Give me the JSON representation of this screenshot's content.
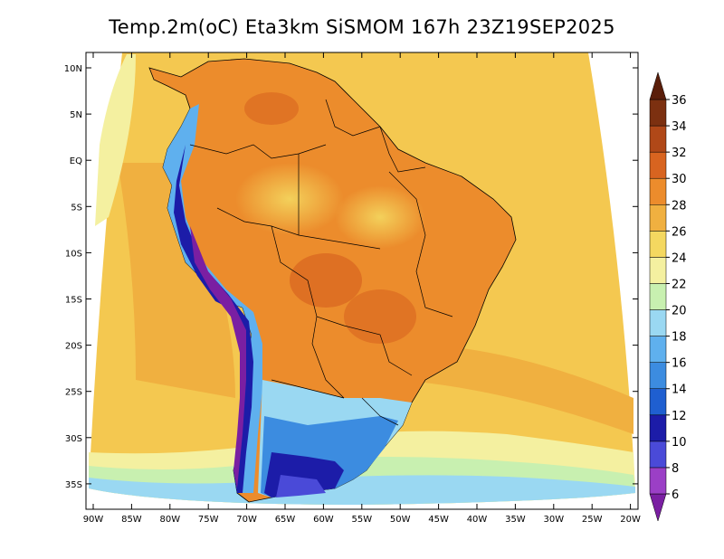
{
  "title": "Temp.2m(oC) Eta3km SiSMOM 167h 23Z19SEP2025",
  "lat_labels": [
    "10N",
    "5N",
    "EQ",
    "5S",
    "10S",
    "15S",
    "20S",
    "25S",
    "30S",
    "35S"
  ],
  "lon_labels": [
    "90W",
    "85W",
    "80W",
    "75W",
    "70W",
    "65W",
    "60W",
    "55W",
    "50W",
    "45W",
    "40W",
    "35W",
    "30W",
    "25W",
    "20W"
  ],
  "colorbar": {
    "levels": [
      "6",
      "8",
      "10",
      "12",
      "14",
      "16",
      "18",
      "20",
      "22",
      "24",
      "26",
      "28",
      "30",
      "32",
      "34",
      "36"
    ],
    "colors": [
      "#7a1fa2",
      "#9b3fc6",
      "#4a4ad8",
      "#1c1ca8",
      "#1f5fd0",
      "#3c8ce0",
      "#5fb0ee",
      "#9ad8f2",
      "#c8f0b0",
      "#f4f0a0",
      "#f4d860",
      "#f0b040",
      "#ec8c2c",
      "#d86420",
      "#b04818",
      "#7c3010",
      "#5a1e0a"
    ]
  },
  "map": {
    "ocean_color": "#f4c850",
    "continent_base": "#ec8c2c",
    "extent": "Lon 90W-20W, Lat 12N-38S"
  }
}
